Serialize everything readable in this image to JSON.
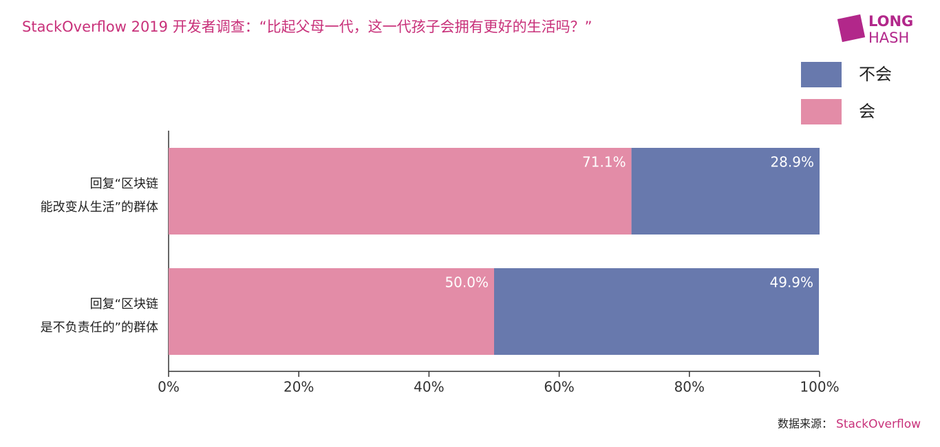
{
  "chart_data": {
    "type": "stacked_bar_horizontal",
    "title": "StackOverflow 2019 开发者调查：“比起父母一代，这一代孩子会拥有更好的生活吗？”",
    "categories": [
      [
        "回复“区块链",
        "能改变从生活”的群体"
      ],
      [
        "回复“区块链",
        "是不负责任的”的群体"
      ]
    ],
    "series": [
      {
        "name": "会",
        "color": "#e38ca7",
        "values": [
          71.1,
          50.0
        ],
        "value_labels": [
          "71.1%",
          "50.0%"
        ]
      },
      {
        "name": "不会",
        "color": "#6879ad",
        "values": [
          28.9,
          49.9
        ],
        "value_labels": [
          "28.9%",
          "49.9%"
        ]
      }
    ],
    "xlim": [
      0,
      100
    ],
    "xticks": [
      {
        "value": 0,
        "label": "0%"
      },
      {
        "value": 20,
        "label": "20%"
      },
      {
        "value": 40,
        "label": "40%"
      },
      {
        "value": 60,
        "label": "60%"
      },
      {
        "value": 80,
        "label": "80%"
      },
      {
        "value": 100,
        "label": "100%"
      }
    ],
    "source_label": "数据来源：",
    "source": "StackOverflow",
    "logo": [
      "LONG",
      "HASH"
    ]
  }
}
